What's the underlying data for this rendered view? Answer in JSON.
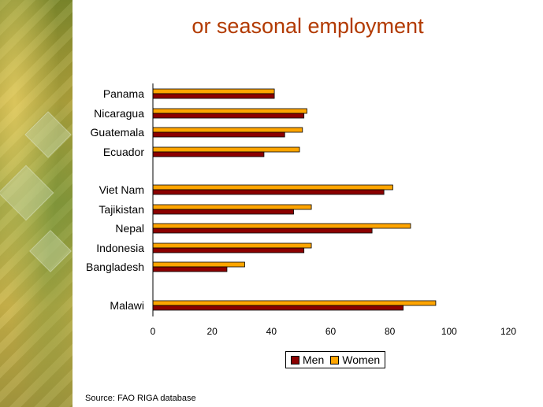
{
  "colors": {
    "men": "#8b0000",
    "women": "#ffa500",
    "title": "#b23a00"
  },
  "chart_data": {
    "type": "bar",
    "orientation": "horizontal",
    "title": "or seasonal employment",
    "categories": [
      "Panama",
      "Nicaragua",
      "Guatemala",
      "Ecuador",
      "Viet Nam",
      "Tajikistan",
      "Nepal",
      "Indonesia",
      "Bangladesh",
      "Malawi"
    ],
    "series": [
      {
        "name": "Men",
        "values": [
          41,
          51,
          44.5,
          37.5,
          78,
          47.5,
          74,
          51,
          25,
          84.5
        ]
      },
      {
        "name": "Women",
        "values": [
          41,
          52,
          50.5,
          49.5,
          81,
          53.5,
          87,
          53.5,
          31,
          95.5
        ]
      }
    ],
    "xlim": [
      0,
      120
    ],
    "xticks": [
      "0",
      "20",
      "40",
      "60",
      "80",
      "100",
      "120"
    ],
    "legend_position": "bottom",
    "grid": false
  },
  "source": "Source: FAO RIGA database"
}
